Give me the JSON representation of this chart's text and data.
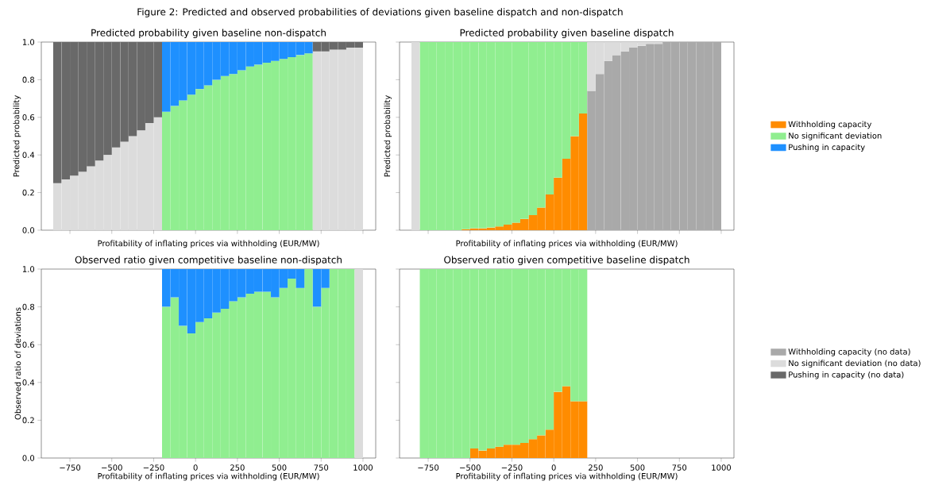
{
  "chart_data": [
    {
      "type": "bar",
      "stacked": true,
      "title": "Predicted probability given baseline non-dispatch",
      "xlabel": "Profitability of inflating prices via withholding (EUR/MW)",
      "ylabel": "Predicted probability",
      "annotations": [
        "Figure 2: Predicted and observed probabilities of deviations given baseline dispatch and non-dispatch"
      ],
      "tick_labels": "y",
      "x": [
        -825,
        -775,
        -725,
        -675,
        -625,
        -575,
        -525,
        -475,
        -425,
        -375,
        -325,
        -275,
        -225,
        -175,
        -125,
        -75,
        -25,
        25,
        75,
        125,
        175,
        225,
        275,
        325,
        375,
        425,
        475,
        525,
        575,
        625,
        675,
        725,
        775,
        825,
        875,
        925,
        975
      ],
      "xlim": [
        -921,
        1076
      ],
      "ylim": [
        0,
        1
      ],
      "xticks": [
        -750,
        -500,
        -250,
        0,
        250,
        500,
        750,
        1000
      ],
      "yticks": [
        {
          "value": 0,
          "label": "0.0"
        },
        {
          "value": 0.2,
          "label": "0.2"
        },
        {
          "value": 0.4,
          "label": "0.4"
        },
        {
          "value": 0.6,
          "label": "0.6"
        },
        {
          "value": 0.8,
          "label": "0.8"
        },
        {
          "value": 1,
          "label": "1.0"
        }
      ],
      "series": [
        {
          "color": "#90ee90",
          "values": [
            null,
            null,
            null,
            null,
            null,
            null,
            null,
            null,
            null,
            null,
            null,
            null,
            null,
            0.63,
            0.66,
            0.69,
            0.72,
            0.75,
            0.77,
            0.8,
            0.82,
            0.83,
            0.85,
            0.87,
            0.88,
            0.89,
            0.9,
            0.91,
            0.92,
            0.93,
            0.94,
            null,
            null,
            null,
            null,
            null,
            null
          ]
        },
        {
          "color": "#dcdcdc",
          "values": [
            0.25,
            0.27,
            0.29,
            0.31,
            0.34,
            0.37,
            0.4,
            0.44,
            0.47,
            0.5,
            0.53,
            0.57,
            0.6,
            null,
            null,
            null,
            null,
            null,
            null,
            null,
            null,
            null,
            null,
            null,
            null,
            null,
            null,
            null,
            null,
            null,
            null,
            0.95,
            0.95,
            0.96,
            0.96,
            0.97,
            0.97
          ]
        },
        {
          "color": "#1e90ff",
          "values": [
            null,
            null,
            null,
            null,
            null,
            null,
            null,
            null,
            null,
            null,
            null,
            null,
            null,
            0.37,
            0.34,
            0.31,
            0.28,
            0.25,
            0.23,
            0.2,
            0.18,
            0.17,
            0.15,
            0.13,
            0.12,
            0.11,
            0.1,
            0.09,
            0.08,
            0.07,
            0.06,
            null,
            null,
            null,
            null,
            null,
            null
          ]
        },
        {
          "color": "#696969",
          "values": [
            0.75,
            0.73,
            0.71,
            0.69,
            0.66,
            0.63,
            0.6,
            0.56,
            0.53,
            0.5,
            0.47,
            0.43,
            0.4,
            null,
            null,
            null,
            null,
            null,
            null,
            null,
            null,
            null,
            null,
            null,
            null,
            null,
            null,
            null,
            null,
            null,
            null,
            0.05,
            0.05,
            0.04,
            0.04,
            0.03,
            0.03
          ]
        }
      ]
    },
    {
      "type": "bar",
      "stacked": true,
      "title": "Predicted probability given baseline dispatch",
      "xlabel": "Profitability of inflating prices via withholding (EUR/MW)",
      "ylabel": "Predicted probability",
      "tick_labels": false,
      "legend": "right",
      "x": [
        -825,
        -775,
        -725,
        -675,
        -625,
        -575,
        -525,
        -475,
        -425,
        -375,
        -325,
        -275,
        -225,
        -175,
        -125,
        -75,
        -25,
        25,
        75,
        125,
        175,
        225,
        275,
        325,
        375,
        425,
        475,
        525,
        575,
        625,
        675,
        725,
        775,
        825,
        875,
        925,
        975
      ],
      "xlim": [
        -921,
        1076
      ],
      "ylim": [
        0,
        1
      ],
      "xticks": [
        -750,
        -500,
        -250,
        0,
        250,
        500,
        750,
        1000
      ],
      "yticks": [
        0,
        0.2,
        0.4,
        0.6,
        0.8,
        1
      ],
      "series": [
        {
          "name": "Withholding capacity",
          "color": "#ff8c00",
          "values": [
            null,
            null,
            null,
            null,
            null,
            null,
            0.005,
            0.01,
            0.01,
            0.015,
            0.02,
            0.03,
            0.04,
            0.06,
            0.08,
            0.12,
            0.19,
            0.28,
            0.38,
            0.5,
            0.62,
            null,
            null,
            null,
            null,
            null,
            null,
            null,
            null,
            null,
            null,
            null,
            null,
            null,
            null,
            null,
            null
          ]
        },
        {
          "name": "No significant deviation",
          "color": "#90ee90",
          "values": [
            null,
            1,
            1,
            1,
            1,
            1,
            0.995,
            0.99,
            0.99,
            0.985,
            0.98,
            0.97,
            0.96,
            0.94,
            0.92,
            0.88,
            0.81,
            0.72,
            0.62,
            0.5,
            0.38,
            null,
            null,
            null,
            null,
            null,
            null,
            null,
            null,
            null,
            null,
            null,
            null,
            null,
            null,
            null,
            null
          ]
        },
        {
          "name": "Pushing in capacity",
          "color": "#1e90ff",
          "values": [
            null,
            null,
            null,
            null,
            null,
            null,
            null,
            null,
            null,
            null,
            null,
            null,
            null,
            null,
            null,
            null,
            null,
            null,
            null,
            null,
            null,
            null,
            null,
            null,
            null,
            null,
            null,
            null,
            null,
            null,
            null,
            null,
            null,
            null,
            null,
            null,
            null
          ]
        },
        {
          "color": "#a9a9a9",
          "values": [
            null,
            null,
            null,
            null,
            null,
            null,
            null,
            null,
            null,
            null,
            null,
            null,
            null,
            null,
            null,
            null,
            null,
            null,
            null,
            null,
            null,
            0.74,
            0.83,
            0.9,
            0.93,
            0.95,
            0.97,
            0.98,
            0.99,
            0.99,
            1,
            1,
            1,
            1,
            1,
            1,
            1
          ]
        },
        {
          "color": "#dcdcdc",
          "values": [
            1,
            null,
            null,
            null,
            null,
            null,
            null,
            null,
            null,
            null,
            null,
            null,
            null,
            null,
            null,
            null,
            null,
            null,
            null,
            null,
            null,
            0.26,
            0.17,
            0.1,
            0.07,
            0.05,
            0.03,
            0.02,
            0.01,
            0.01,
            null,
            null,
            null,
            null,
            null,
            null,
            null
          ]
        }
      ]
    },
    {
      "type": "bar",
      "stacked": true,
      "title": "Observed ratio given competitive baseline non-dispatch",
      "xlabel": "Profitability of inflating prices via withholding (EUR/MW)",
      "ylabel": "Observed ratio of deviations",
      "x": [
        -175,
        -125,
        -75,
        -25,
        25,
        75,
        125,
        175,
        225,
        275,
        325,
        375,
        425,
        475,
        525,
        575,
        625,
        675,
        725,
        775,
        825,
        875,
        925,
        975
      ],
      "xlim": [
        -921,
        1076
      ],
      "ylim": [
        0,
        1
      ],
      "xticks": [
        {
          "value": -750,
          "label": "−750"
        },
        {
          "value": -500,
          "label": "−500"
        },
        {
          "value": -250,
          "label": "−250"
        },
        0,
        250,
        500,
        750,
        1000
      ],
      "yticks": [
        {
          "value": 0,
          "label": "0.0"
        },
        {
          "value": 0.2,
          "label": "0.2"
        },
        {
          "value": 0.4,
          "label": "0.4"
        },
        {
          "value": 0.6,
          "label": "0.6"
        },
        {
          "value": 0.8,
          "label": "0.8"
        },
        {
          "value": 1,
          "label": "1.0"
        }
      ],
      "series": [
        {
          "color": "#90ee90",
          "values": [
            0.8,
            0.85,
            0.7,
            0.66,
            0.72,
            0.74,
            0.77,
            0.79,
            0.83,
            0.85,
            0.87,
            0.88,
            0.88,
            0.85,
            0.9,
            0.95,
            0.9,
            1,
            0.8,
            0.9,
            1,
            1,
            1,
            null
          ]
        },
        {
          "color": "#1e90ff",
          "values": [
            0.2,
            0.15,
            0.3,
            0.34,
            0.28,
            0.26,
            0.23,
            0.21,
            0.17,
            0.15,
            0.13,
            0.12,
            0.12,
            0.15,
            0.1,
            0.05,
            0.1,
            null,
            0.2,
            0.1,
            null,
            null,
            null,
            null
          ]
        },
        {
          "color": "#dcdcdc",
          "values": [
            null,
            null,
            null,
            null,
            null,
            null,
            null,
            null,
            null,
            null,
            null,
            null,
            null,
            null,
            null,
            null,
            null,
            null,
            null,
            null,
            null,
            null,
            null,
            1
          ]
        }
      ]
    },
    {
      "type": "bar",
      "stacked": true,
      "title": "Observed ratio given competitive baseline dispatch",
      "xlabel": "Profitability of inflating prices via withholding (EUR/MW)",
      "tick_labels": "x",
      "legend": "right",
      "x": [
        -775,
        -725,
        -675,
        -625,
        -575,
        -525,
        -475,
        -425,
        -375,
        -325,
        -275,
        -225,
        -175,
        -125,
        -75,
        -25,
        25,
        75,
        125,
        175
      ],
      "xlim": [
        -921,
        1076
      ],
      "ylim": [
        0,
        1
      ],
      "xticks": [
        {
          "value": -750,
          "label": "−750"
        },
        {
          "value": -500,
          "label": "−500"
        },
        {
          "value": -250,
          "label": "−250"
        },
        0,
        250,
        500,
        750,
        1000
      ],
      "yticks": [
        0,
        0.2,
        0.4,
        0.6,
        0.8,
        1
      ],
      "series": [
        {
          "color": "#ff8c00",
          "values": [
            null,
            null,
            null,
            null,
            null,
            null,
            0.05,
            0.04,
            0.05,
            0.06,
            0.07,
            0.07,
            0.08,
            0.1,
            0.12,
            0.15,
            0.35,
            0.38,
            0.3,
            0.3
          ]
        },
        {
          "color": "#90ee90",
          "values": [
            1,
            1,
            1,
            1,
            1,
            1,
            0.95,
            0.96,
            0.95,
            0.94,
            0.93,
            0.93,
            0.92,
            0.9,
            0.88,
            0.85,
            0.65,
            0.62,
            0.7,
            0.7
          ]
        },
        {
          "name": "Withholding capacity (no data)",
          "color": "#a9a9a9",
          "values": [
            null,
            null,
            null,
            null,
            null,
            null,
            null,
            null,
            null,
            null,
            null,
            null,
            null,
            null,
            null,
            null,
            null,
            null,
            null,
            null
          ]
        },
        {
          "name": "No significant deviation (no data)",
          "color": "#dcdcdc",
          "values": [
            null,
            null,
            null,
            null,
            null,
            null,
            null,
            null,
            null,
            null,
            null,
            null,
            null,
            null,
            null,
            null,
            null,
            null,
            null,
            null
          ]
        },
        {
          "name": "Pushing in capacity (no data)",
          "color": "#696969",
          "values": [
            null,
            null,
            null,
            null,
            null,
            null,
            null,
            null,
            null,
            null,
            null,
            null,
            null,
            null,
            null,
            null,
            null,
            null,
            null,
            null
          ]
        }
      ]
    }
  ]
}
